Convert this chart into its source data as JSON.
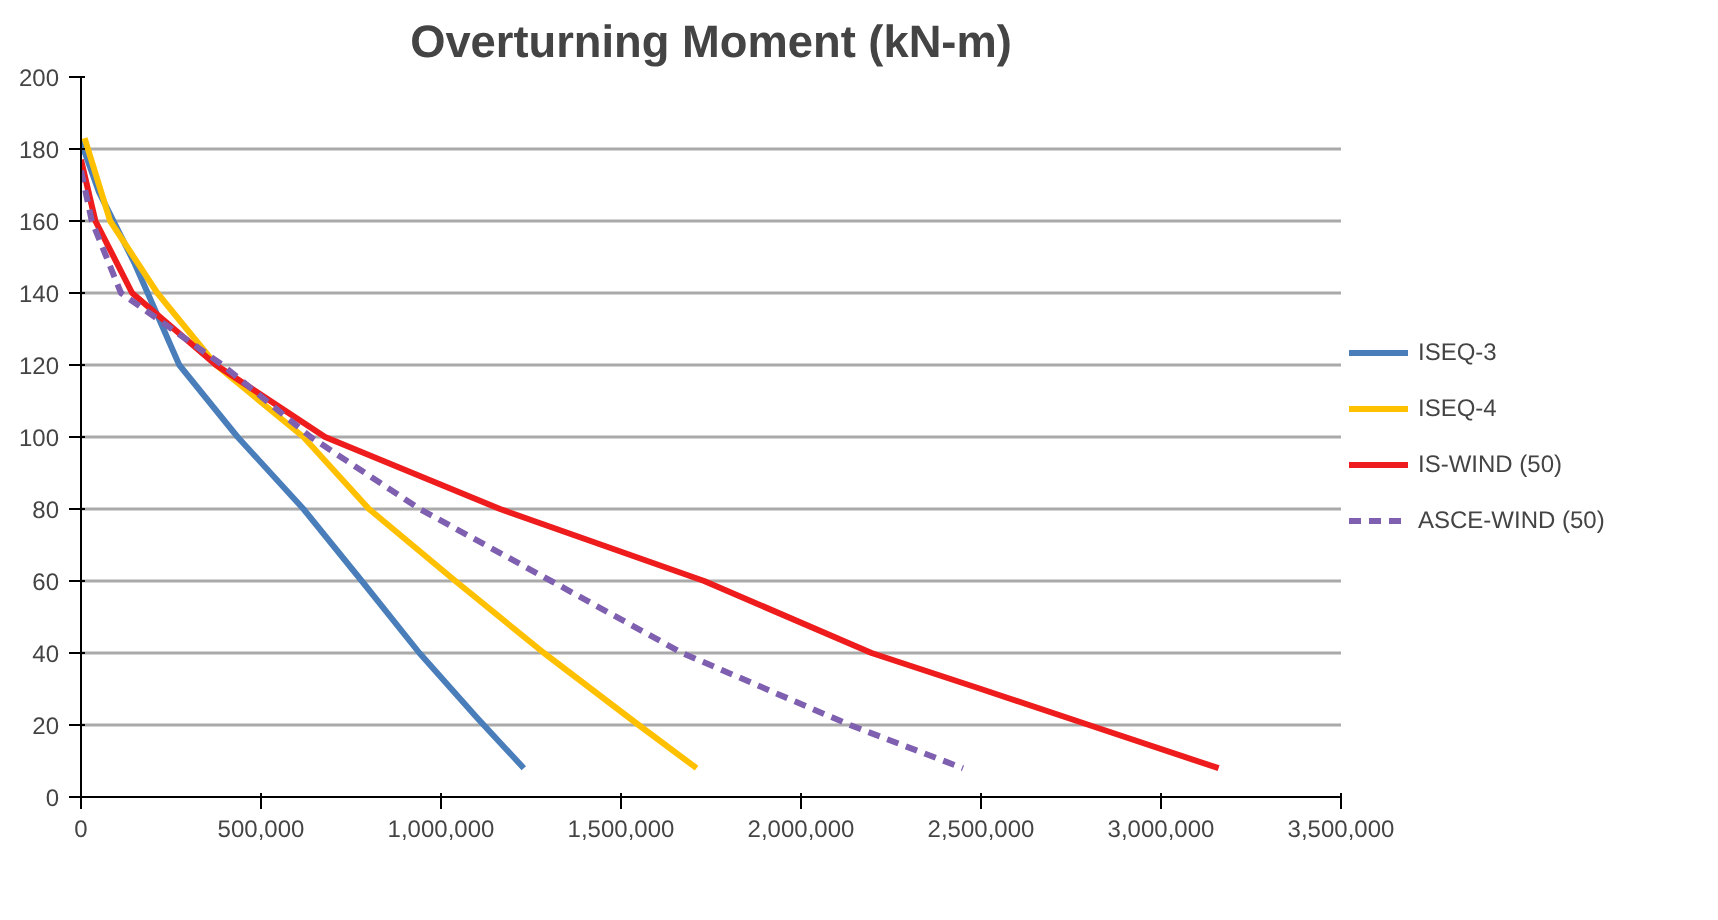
{
  "chart_data": {
    "type": "line",
    "title": "Overturning Moment (kN-m)",
    "xlim": [
      0,
      3500000
    ],
    "xticks": [
      {
        "value": 0,
        "label": "0"
      },
      {
        "value": 500000,
        "label": "500,000"
      },
      {
        "value": 1000000,
        "label": "1,000,000"
      },
      {
        "value": 1500000,
        "label": "1,500,000"
      },
      {
        "value": 2000000,
        "label": "2,000,000"
      },
      {
        "value": 2500000,
        "label": "2,500,000"
      },
      {
        "value": 3000000,
        "label": "3,000,000"
      },
      {
        "value": 3500000,
        "label": "3,500,000"
      }
    ],
    "ylim": [
      0,
      200
    ],
    "yticks": [
      0,
      20,
      40,
      60,
      80,
      100,
      120,
      140,
      160,
      180,
      200
    ],
    "grid": "y",
    "legend": "right",
    "marker": "none",
    "series": [
      {
        "name": "ISEQ-3",
        "color": "#4a7ebb",
        "line_style": "solid",
        "x": [
          0,
          50000,
          150000,
          273000,
          435000,
          618000,
          780000,
          940000,
          1100000,
          1230000
        ],
        "values": [
          182,
          168,
          148,
          120,
          100,
          80,
          60,
          40,
          22,
          8
        ]
      },
      {
        "name": "ISEQ-4",
        "color": "#ffc000",
        "line_style": "solid",
        "x": [
          10000,
          81000,
          212000,
          375000,
          618000,
          800000,
          1040000,
          1286000,
          1549000,
          1710000
        ],
        "values": [
          183,
          160,
          140,
          120,
          100,
          80,
          60,
          40,
          20,
          8
        ]
      },
      {
        "name": "IS-WIND (50)",
        "color": "#ee1c1c",
        "line_style": "solid",
        "x": [
          0,
          40000,
          142000,
          375000,
          678000,
          1164000,
          1731000,
          2196000,
          2500000,
          2800000,
          3160000
        ],
        "values": [
          177,
          160,
          140,
          120,
          100,
          80,
          60,
          40,
          30,
          20,
          8
        ]
      },
      {
        "name": "ASCE-WIND (50)",
        "color": "#7f5fb0",
        "line_style": "dashed",
        "x": [
          0,
          30000,
          111000,
          393000,
          638000,
          941000,
          1306000,
          1670000,
          2136000,
          2450000
        ],
        "values": [
          174,
          160,
          140,
          120,
          100,
          80,
          60,
          40,
          20,
          8
        ]
      }
    ]
  }
}
